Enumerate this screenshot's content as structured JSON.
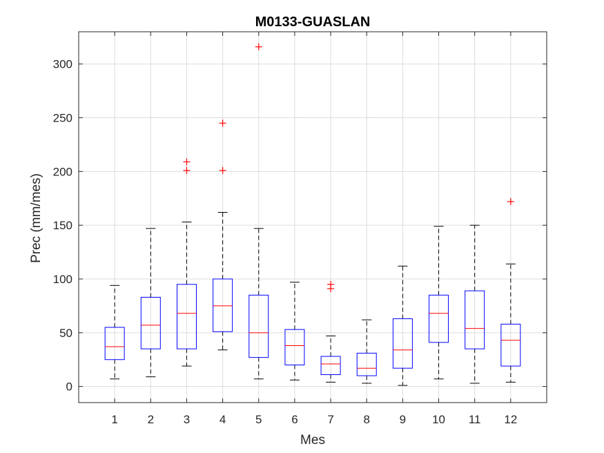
{
  "chart_data": {
    "type": "boxplot",
    "title": "M0133-GUASLAN",
    "xlabel": "Mes",
    "ylabel": "Prec (mm/mes)",
    "categories": [
      "1",
      "2",
      "3",
      "4",
      "5",
      "6",
      "7",
      "8",
      "9",
      "10",
      "11",
      "12"
    ],
    "ylim": [
      -15,
      330
    ],
    "yticks": [
      0,
      50,
      100,
      150,
      200,
      250,
      300
    ],
    "grid": true,
    "boxes": [
      {
        "x": "1",
        "whisker_low": 7,
        "q1": 25,
        "median": 37,
        "q3": 55,
        "whisker_high": 94,
        "outliers": []
      },
      {
        "x": "2",
        "whisker_low": 9,
        "q1": 35,
        "median": 57,
        "q3": 83,
        "whisker_high": 147,
        "outliers": []
      },
      {
        "x": "3",
        "whisker_low": 19,
        "q1": 35,
        "median": 68,
        "q3": 95,
        "whisker_high": 153,
        "outliers": [
          201,
          209
        ]
      },
      {
        "x": "4",
        "whisker_low": 34,
        "q1": 51,
        "median": 75,
        "q3": 100,
        "whisker_high": 162,
        "outliers": [
          201,
          245
        ]
      },
      {
        "x": "5",
        "whisker_low": 7,
        "q1": 27,
        "median": 50,
        "q3": 85,
        "whisker_high": 147,
        "outliers": [
          316
        ]
      },
      {
        "x": "6",
        "whisker_low": 6,
        "q1": 20,
        "median": 38,
        "q3": 53,
        "whisker_high": 97,
        "outliers": []
      },
      {
        "x": "7",
        "whisker_low": 4,
        "q1": 11,
        "median": 21,
        "q3": 28,
        "whisker_high": 47,
        "outliers": [
          91,
          95
        ]
      },
      {
        "x": "8",
        "whisker_low": 3,
        "q1": 10,
        "median": 17,
        "q3": 31,
        "whisker_high": 62,
        "outliers": []
      },
      {
        "x": "9",
        "whisker_low": 1,
        "q1": 17,
        "median": 34,
        "q3": 63,
        "whisker_high": 112,
        "outliers": []
      },
      {
        "x": "10",
        "whisker_low": 7,
        "q1": 41,
        "median": 68,
        "q3": 85,
        "whisker_high": 149,
        "outliers": []
      },
      {
        "x": "11",
        "whisker_low": 3,
        "q1": 35,
        "median": 54,
        "q3": 89,
        "whisker_high": 150,
        "outliers": []
      },
      {
        "x": "12",
        "whisker_low": 4,
        "q1": 19,
        "median": 43,
        "q3": 58,
        "whisker_high": 114,
        "outliers": [
          172
        ]
      }
    ],
    "colors": {
      "box": "#0000ff",
      "median": "#ff0000",
      "whisker": "#000000",
      "outlier": "#ff0000",
      "grid": "#dcdcdc",
      "axis": "#262626"
    }
  }
}
